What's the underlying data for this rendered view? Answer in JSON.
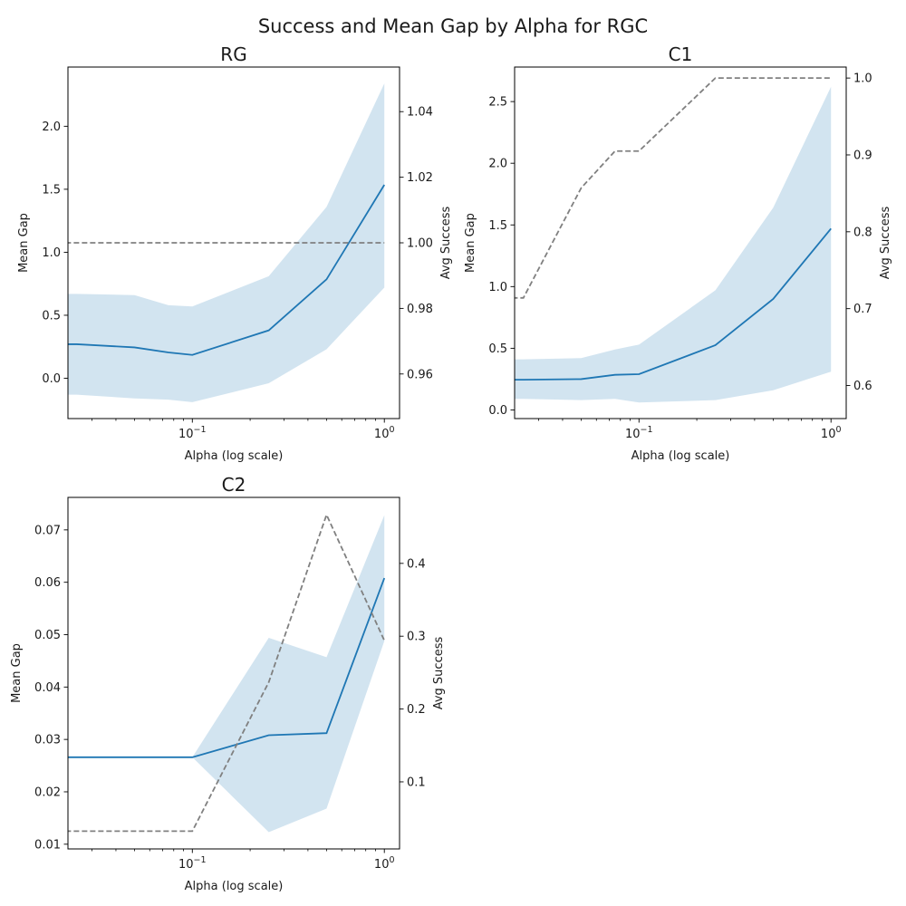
{
  "figure": {
    "title": "Success and Mean Gap by Alpha for RGC"
  },
  "chart_data": [
    {
      "type": "line",
      "title": "RG",
      "xlabel": "Alpha (log scale)",
      "ylabel": "Mean Gap",
      "y2label": "Avg Success",
      "x_scale": "log",
      "xlim": [
        0.0225,
        1.2
      ],
      "x_ticks": [
        0.1,
        1
      ],
      "ylim": [
        -0.32,
        2.47
      ],
      "y_ticks": [
        0.0,
        0.5,
        1.0,
        1.5,
        2.0
      ],
      "y_tick_labels": [
        "0.0",
        "0.5",
        "1.0",
        "1.5",
        "2.0"
      ],
      "y2lim": [
        0.9464,
        1.0536
      ],
      "y2_ticks": [
        0.96,
        0.98,
        1.0,
        1.02,
        1.04
      ],
      "y2_tick_labels": [
        "0.96",
        "0.98",
        "1.00",
        "1.02",
        "1.04"
      ],
      "x": [
        0.01,
        0.025,
        0.05,
        0.075,
        0.1,
        0.25,
        0.5,
        1.0
      ],
      "series": [
        {
          "name": "",
          "kind": "line",
          "color": "#1f77b4",
          "axis": "left",
          "values": [
            0.27,
            0.27,
            0.245,
            0.205,
            0.185,
            0.38,
            0.785,
            1.535
          ]
        },
        {
          "name": "",
          "kind": "band",
          "color": "#1f77b4",
          "axis": "left",
          "lower": [
            -0.13,
            -0.13,
            -0.16,
            -0.17,
            -0.19,
            -0.04,
            0.23,
            0.72
          ],
          "upper": [
            0.67,
            0.67,
            0.66,
            0.58,
            0.57,
            0.81,
            1.36,
            2.34
          ]
        },
        {
          "name": "",
          "kind": "dashed",
          "color": "#808080",
          "axis": "right",
          "values": [
            1.0,
            1.0,
            1.0,
            1.0,
            1.0,
            1.0,
            1.0,
            1.0
          ]
        }
      ]
    },
    {
      "type": "line",
      "title": "C1",
      "xlabel": "Alpha (log scale)",
      "ylabel": "Mean Gap",
      "y2label": "Avg Success",
      "x_scale": "log",
      "xlim": [
        0.0225,
        1.2
      ],
      "x_ticks": [
        0.1,
        1
      ],
      "ylim": [
        -0.07,
        2.78
      ],
      "y_ticks": [
        0.0,
        0.5,
        1.0,
        1.5,
        2.0,
        2.5
      ],
      "y_tick_labels": [
        "0.0",
        "0.5",
        "1.0",
        "1.5",
        "2.0",
        "2.5"
      ],
      "y2lim": [
        0.557,
        1.0143
      ],
      "y2_ticks": [
        0.6,
        0.7,
        0.8,
        0.9,
        1.0
      ],
      "y2_tick_labels": [
        "0.6",
        "0.7",
        "0.8",
        "0.9",
        "1.0"
      ],
      "x": [
        0.01,
        0.025,
        0.05,
        0.075,
        0.1,
        0.25,
        0.5,
        1.0
      ],
      "series": [
        {
          "name": "",
          "kind": "line",
          "color": "#1f77b4",
          "axis": "left",
          "values": [
            0.245,
            0.245,
            0.25,
            0.285,
            0.29,
            0.525,
            0.9,
            1.47
          ]
        },
        {
          "name": "",
          "kind": "band",
          "color": "#1f77b4",
          "axis": "left",
          "lower": [
            0.09,
            0.09,
            0.08,
            0.09,
            0.06,
            0.08,
            0.16,
            0.31
          ],
          "upper": [
            0.41,
            0.41,
            0.42,
            0.49,
            0.53,
            0.97,
            1.64,
            2.62
          ]
        },
        {
          "name": "",
          "kind": "dashed",
          "color": "#808080",
          "axis": "right",
          "values": [
            0.714,
            0.714,
            0.857,
            0.905,
            0.905,
            1.0,
            1.0,
            1.0
          ]
        }
      ]
    },
    {
      "type": "line",
      "title": "C2",
      "xlabel": "Alpha (log scale)",
      "ylabel": "Mean Gap",
      "y2label": "Avg Success",
      "x_scale": "log",
      "xlim": [
        0.0225,
        1.2
      ],
      "x_ticks": [
        0.1,
        1
      ],
      "ylim": [
        0.0091,
        0.0762
      ],
      "y_ticks": [
        0.01,
        0.02,
        0.03,
        0.04,
        0.05,
        0.06,
        0.07
      ],
      "y_tick_labels": [
        "0.01",
        "0.02",
        "0.03",
        "0.04",
        "0.05",
        "0.06",
        "0.07"
      ],
      "y2lim": [
        0.0079,
        0.4906
      ],
      "y2_ticks": [
        0.1,
        0.2,
        0.3,
        0.4
      ],
      "y2_tick_labels": [
        "0.1",
        "0.2",
        "0.3",
        "0.4"
      ],
      "x": [
        0.01,
        0.025,
        0.05,
        0.075,
        0.1,
        0.25,
        0.5,
        1.0
      ],
      "series": [
        {
          "name": "",
          "kind": "line",
          "color": "#1f77b4",
          "axis": "left",
          "values": [
            0.0266,
            0.0266,
            0.0266,
            0.0266,
            0.0266,
            0.0308,
            0.0312,
            0.0608
          ]
        },
        {
          "name": "",
          "kind": "band",
          "color": "#1f77b4",
          "axis": "left",
          "lower": [
            0.0266,
            0.0266,
            0.0266,
            0.0266,
            0.0266,
            0.0123,
            0.0168,
            0.0488
          ],
          "upper": [
            0.0266,
            0.0266,
            0.0266,
            0.0266,
            0.0266,
            0.0494,
            0.0457,
            0.0728
          ]
        },
        {
          "name": "",
          "kind": "dashed",
          "color": "#808080",
          "axis": "right",
          "values": [
            0.0323,
            0.0323,
            0.0323,
            0.0323,
            0.0323,
            0.2368,
            0.4667,
            0.2941
          ]
        }
      ]
    }
  ]
}
